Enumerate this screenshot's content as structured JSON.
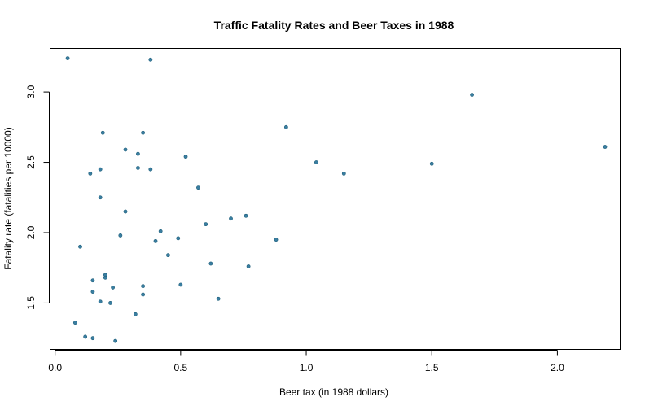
{
  "chart_data": {
    "type": "scatter",
    "title": "Traffic Fatality Rates and Beer Taxes in 1988",
    "xlabel": "Beer tax (in 1988 dollars)",
    "ylabel": "Fatality rate (fatalities per 10000)",
    "xlim": [
      -0.02,
      2.25
    ],
    "ylim": [
      1.17,
      3.31
    ],
    "xticks": [
      0.0,
      0.5,
      1.0,
      1.5,
      2.0
    ],
    "xtick_labels": [
      "0.0",
      "0.5",
      "1.0",
      "1.5",
      "2.0"
    ],
    "yticks": [
      1.5,
      2.0,
      2.5,
      3.0
    ],
    "ytick_labels": [
      "1.5",
      "2.0",
      "2.5",
      "3.0"
    ],
    "grid": false,
    "marker_color": "#3a7ea1",
    "points": [
      {
        "x": 0.05,
        "y": 3.24
      },
      {
        "x": 0.38,
        "y": 3.23
      },
      {
        "x": 1.66,
        "y": 2.98
      },
      {
        "x": 0.92,
        "y": 2.75
      },
      {
        "x": 0.19,
        "y": 2.71
      },
      {
        "x": 0.35,
        "y": 2.71
      },
      {
        "x": 2.19,
        "y": 2.61
      },
      {
        "x": 0.28,
        "y": 2.59
      },
      {
        "x": 0.33,
        "y": 2.56
      },
      {
        "x": 0.52,
        "y": 2.54
      },
      {
        "x": 1.04,
        "y": 2.5
      },
      {
        "x": 1.5,
        "y": 2.49
      },
      {
        "x": 0.33,
        "y": 2.46
      },
      {
        "x": 0.18,
        "y": 2.45
      },
      {
        "x": 0.38,
        "y": 2.45
      },
      {
        "x": 0.14,
        "y": 2.42
      },
      {
        "x": 1.15,
        "y": 2.42
      },
      {
        "x": 0.57,
        "y": 2.32
      },
      {
        "x": 0.18,
        "y": 2.25
      },
      {
        "x": 0.28,
        "y": 2.15
      },
      {
        "x": 0.76,
        "y": 2.12
      },
      {
        "x": 0.7,
        "y": 2.1
      },
      {
        "x": 0.6,
        "y": 2.06
      },
      {
        "x": 0.42,
        "y": 2.01
      },
      {
        "x": 0.26,
        "y": 1.98
      },
      {
        "x": 0.49,
        "y": 1.96
      },
      {
        "x": 0.88,
        "y": 1.95
      },
      {
        "x": 0.4,
        "y": 1.94
      },
      {
        "x": 0.1,
        "y": 1.9
      },
      {
        "x": 0.45,
        "y": 1.84
      },
      {
        "x": 0.62,
        "y": 1.78
      },
      {
        "x": 0.77,
        "y": 1.76
      },
      {
        "x": 0.2,
        "y": 1.7
      },
      {
        "x": 0.2,
        "y": 1.68
      },
      {
        "x": 0.15,
        "y": 1.66
      },
      {
        "x": 0.5,
        "y": 1.63
      },
      {
        "x": 0.35,
        "y": 1.62
      },
      {
        "x": 0.23,
        "y": 1.61
      },
      {
        "x": 0.15,
        "y": 1.58
      },
      {
        "x": 0.35,
        "y": 1.56
      },
      {
        "x": 0.65,
        "y": 1.53
      },
      {
        "x": 0.18,
        "y": 1.51
      },
      {
        "x": 0.22,
        "y": 1.5
      },
      {
        "x": 0.32,
        "y": 1.42
      },
      {
        "x": 0.08,
        "y": 1.36
      },
      {
        "x": 0.12,
        "y": 1.26
      },
      {
        "x": 0.15,
        "y": 1.25
      },
      {
        "x": 0.24,
        "y": 1.23
      }
    ]
  }
}
